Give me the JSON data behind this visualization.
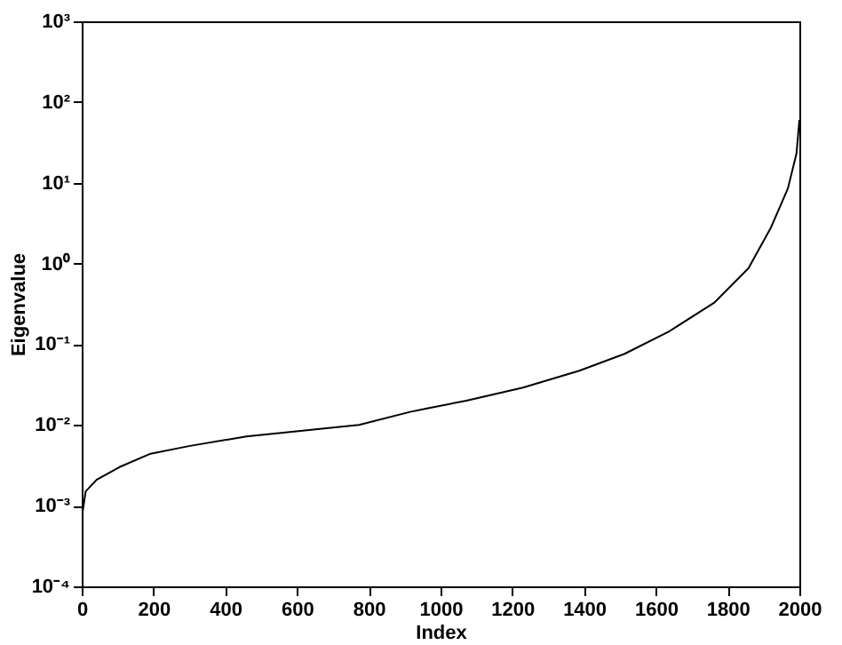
{
  "chart_data": {
    "type": "line",
    "xlabel": "Index",
    "ylabel": "Eigenvalue",
    "log": "y",
    "xlim": [
      0,
      2000
    ],
    "xticks": [
      0,
      200,
      400,
      600,
      800,
      1000,
      1200,
      1400,
      1600,
      1800,
      2000
    ],
    "ylim": [
      0.0001,
      1000
    ],
    "yticks": [
      {
        "value": 0.0001,
        "label": "10⁻⁴"
      },
      {
        "value": 0.001,
        "label": "10⁻³"
      },
      {
        "value": 0.01,
        "label": "10⁻²"
      },
      {
        "value": 0.1,
        "label": "10⁻¹"
      },
      {
        "value": 1,
        "label": "10⁰"
      },
      {
        "value": 10,
        "label": "10¹"
      },
      {
        "value": 100,
        "label": "10²"
      },
      {
        "value": 1000,
        "label": "10³"
      }
    ],
    "grid": false,
    "marker": "none",
    "line_style": "solid",
    "x": [
      0,
      11,
      42,
      105,
      192,
      302,
      459,
      616,
      773,
      915,
      962,
      1072,
      1230,
      1387,
      1513,
      1638,
      1764,
      1858,
      1921,
      1968,
      1992,
      2000
    ],
    "series": [
      {
        "color": "#000000",
        "values": [
          0.0007,
          0.0015,
          0.0021,
          0.003,
          0.0044,
          0.0055,
          0.0072,
          0.0085,
          0.01,
          0.0145,
          0.016,
          0.02,
          0.029,
          0.047,
          0.076,
          0.145,
          0.33,
          0.87,
          2.8,
          8.5,
          23,
          60
        ]
      }
    ]
  }
}
